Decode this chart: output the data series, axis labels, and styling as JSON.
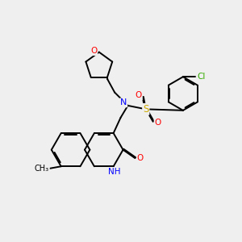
{
  "bg_color": "#efefef",
  "bond_color": "#000000",
  "atom_colors": {
    "N": "#0000ff",
    "O": "#ff0000",
    "S": "#ccaa00",
    "Cl": "#33aa00",
    "C": "#000000"
  },
  "lw": 1.4,
  "dbo": 0.055
}
